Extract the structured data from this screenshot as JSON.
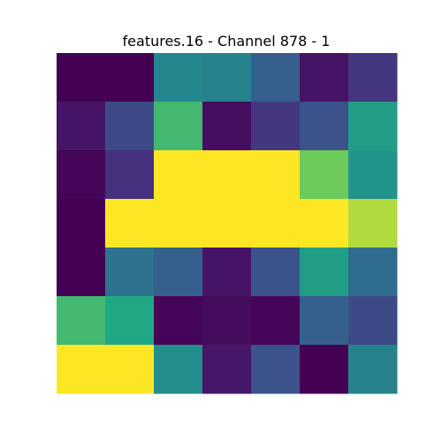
{
  "chart_data": {
    "type": "heatmap",
    "title": "features.16 - Channel 878 - 1",
    "xlabel": "",
    "ylabel": "",
    "colormap": "viridis",
    "axes_visible": false,
    "grid": false,
    "rows": 7,
    "cols": 7,
    "values": [
      [
        0.0,
        0.0,
        0.58,
        0.55,
        0.38,
        0.07,
        0.2
      ],
      [
        0.07,
        0.28,
        0.8,
        0.05,
        0.2,
        0.32,
        0.7
      ],
      [
        0.02,
        0.18,
        1.0,
        1.0,
        1.0,
        0.86,
        0.65
      ],
      [
        0.0,
        1.0,
        1.0,
        1.0,
        1.0,
        1.0,
        0.93
      ],
      [
        0.0,
        0.47,
        0.38,
        0.07,
        0.32,
        0.7,
        0.44
      ],
      [
        0.8,
        0.75,
        0.02,
        0.04,
        0.02,
        0.38,
        0.28
      ],
      [
        1.0,
        1.0,
        0.62,
        0.08,
        0.32,
        0.0,
        0.55
      ]
    ]
  }
}
